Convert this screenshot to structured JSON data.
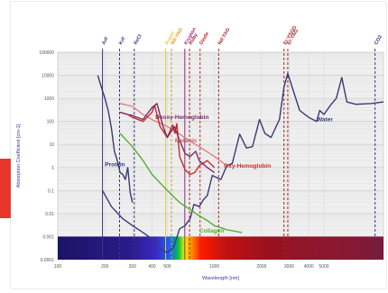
{
  "chart_data": {
    "type": "line",
    "title": "",
    "xlabel": "Wavelength [nm]",
    "ylabel": "Absorption Coefficient [cm-1]",
    "x_scale": "log",
    "y_scale": "log",
    "xlim": [
      100,
      12000
    ],
    "ylim": [
      0.0001,
      100000
    ],
    "x_tick_labels": [
      {
        "value": 100,
        "label": "100"
      },
      {
        "value": 200,
        "label": "200"
      },
      {
        "value": 300,
        "label": "300"
      },
      {
        "value": 400,
        "label": "400"
      },
      {
        "value": 500,
        "label": "500"
      },
      {
        "value": 1000,
        "label": "1000"
      },
      {
        "value": 2000,
        "label": "2000"
      },
      {
        "value": 3000,
        "label": "3000"
      },
      {
        "value": 4000,
        "label": "4000"
      },
      {
        "value": 5000,
        "label": "5000"
      }
    ],
    "y_tick_labels": [
      {
        "value": 100000,
        "label": "100000"
      },
      {
        "value": 10000,
        "label": "10000"
      },
      {
        "value": 1000,
        "label": "1000"
      },
      {
        "value": 100,
        "label": "100"
      },
      {
        "value": 10,
        "label": "10"
      },
      {
        "value": 1,
        "label": "1"
      },
      {
        "value": 0.1,
        "label": "0.1"
      },
      {
        "value": 0.01,
        "label": "0.01"
      },
      {
        "value": 0.001,
        "label": "0.001"
      },
      {
        "value": 0.0001,
        "label": "0.0001"
      }
    ],
    "grid": true,
    "spectrum_band": {
      "y_from": 0.0001,
      "y_to": 0.001
    },
    "laser_lines": [
      {
        "label": "ArF",
        "x": 193,
        "style": "solid",
        "color": "#3a3a78"
      },
      {
        "label": "KrF",
        "x": 248,
        "style": "dashed",
        "color": "#3a3a78"
      },
      {
        "label": "XeCl",
        "x": 308,
        "style": "dashed",
        "color": "#3a3a78"
      },
      {
        "label": "Argon",
        "x": 488,
        "style": "solid",
        "color": "#d8d040"
      },
      {
        "label": "Nd:YAG",
        "x": 532,
        "style": "dashed",
        "color": "#c8a020"
      },
      {
        "label": "Krypton",
        "x": 647,
        "style": "solid",
        "color": "#9a2a7a"
      },
      {
        "label": "Ruby",
        "x": 694,
        "style": "dashed",
        "color": "#9a2a2a"
      },
      {
        "label": "Diode",
        "x": 810,
        "style": "dashed",
        "color": "#c82a2a"
      },
      {
        "label": "Nd:YAG",
        "x": 1064,
        "style": "dashed",
        "color": "#9a2a2a"
      },
      {
        "label": "Er:YSGG",
        "x": 2780,
        "style": "dashed",
        "color": "#9a2a2a"
      },
      {
        "label": "Er:YAG",
        "x": 2940,
        "style": "dashed",
        "color": "#9a2a2a"
      },
      {
        "label": "CO2",
        "x": 10600,
        "style": "dashed",
        "color": "#3a3a78"
      }
    ],
    "series": [
      {
        "name": "Water",
        "color": "#3a3a78",
        "x": [
          193,
          220,
          260,
          300,
          350,
          400,
          430,
          470,
          500,
          550,
          600,
          650,
          700,
          740,
          800,
          850,
          900,
          970,
          1000,
          1100,
          1200,
          1300,
          1450,
          1600,
          1750,
          1940,
          2100,
          2300,
          2600,
          2780,
          2940,
          3200,
          3500,
          4000,
          4500,
          4700,
          5000,
          5500,
          6000,
          6500,
          7000,
          8000,
          10000,
          12000
        ],
        "y": [
          0.1,
          0.02,
          0.006,
          0.003,
          0.0015,
          0.0008,
          0.0004,
          0.00025,
          0.0002,
          0.00035,
          0.0022,
          0.003,
          0.006,
          0.025,
          0.02,
          0.04,
          0.06,
          0.45,
          0.4,
          0.3,
          1.2,
          1.5,
          28,
          7,
          8,
          120,
          30,
          20,
          120,
          3000,
          12000,
          2000,
          300,
          150,
          100,
          300,
          200,
          500,
          1000,
          8000,
          700,
          550,
          600,
          700
        ]
      },
      {
        "name": "Protein",
        "color": "#3a3a78",
        "x": [
          180,
          190,
          200,
          210,
          220,
          230,
          240,
          250,
          260,
          270,
          280,
          290,
          300
        ],
        "y": [
          10000,
          3000,
          1000,
          300,
          50,
          5,
          2,
          0.6,
          0.5,
          0.3,
          1,
          0.08,
          0.03
        ]
      },
      {
        "name": "Melanin",
        "color": "#e08080",
        "x": [
          250,
          300,
          350,
          400,
          500,
          600,
          700,
          800,
          1000,
          1200
        ],
        "y": [
          600,
          450,
          200,
          120,
          60,
          28,
          14,
          8,
          3,
          1.2
        ]
      },
      {
        "name": "Oxy-Hemoglobin",
        "color": "#c82a2a",
        "x": [
          250,
          280,
          300,
          350,
          400,
          415,
          450,
          500,
          540,
          560,
          576,
          600,
          650,
          700,
          750,
          800,
          900,
          1000
        ],
        "y": [
          250,
          200,
          150,
          100,
          250,
          500,
          60,
          20,
          70,
          30,
          80,
          3,
          0.8,
          0.5,
          0.6,
          1.2,
          2,
          1
        ]
      },
      {
        "name": "Deoxy-Hemoglobin",
        "color": "#7a2a6a",
        "x": [
          250,
          280,
          300,
          350,
          400,
          430,
          470,
          500,
          555,
          600,
          650,
          700,
          760,
          800,
          900,
          1000
        ],
        "y": [
          250,
          200,
          180,
          120,
          400,
          600,
          60,
          20,
          60,
          15,
          4,
          3,
          5,
          2,
          1,
          0.6
        ]
      },
      {
        "name": "Collagen",
        "color": "#50b030",
        "x": [
          250,
          300,
          350,
          400,
          500,
          600,
          700,
          800,
          900,
          1000,
          1200,
          1500
        ],
        "y": [
          30,
          8,
          2,
          0.5,
          0.1,
          0.03,
          0.015,
          0.008,
          0.005,
          0.003,
          0.002,
          0.0015
        ]
      }
    ],
    "annotations": [
      {
        "text": "Water",
        "x": 4500,
        "y": 100,
        "color": "#3a3a78"
      },
      {
        "text": "Protein",
        "x": 200,
        "y": 1.1,
        "color": "#3a3a78"
      },
      {
        "text": "Deoxy-Hemoglobin",
        "x": 420,
        "y": 130,
        "color": "#7a2a6a"
      },
      {
        "text": "Melanin",
        "x": 560,
        "y": 12,
        "color": "#c06060"
      },
      {
        "text": "Oxy-Hemoglobin",
        "x": 1150,
        "y": 1,
        "color": "#c82a2a"
      },
      {
        "text": "Collagen",
        "x": 800,
        "y": 0.0015,
        "color": "#50b030"
      }
    ]
  }
}
